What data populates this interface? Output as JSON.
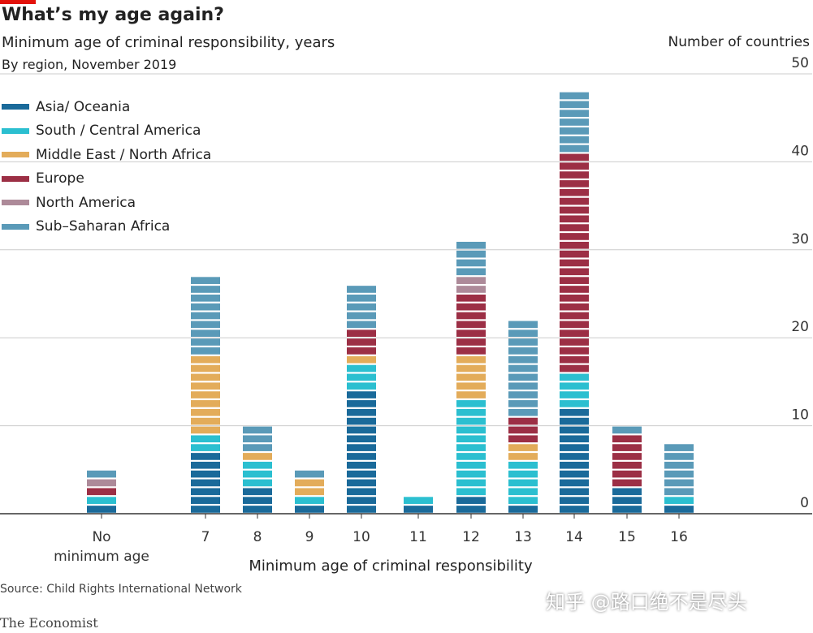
{
  "title": "What’s my age again?",
  "subtitle": "Minimum age of criminal responsibility, years",
  "subtitle2": "By region, November 2019",
  "source": "Source: Child Rights International Network",
  "brand": "The Economist",
  "watermark": "知乎 @路口绝不是尽头",
  "chart_data": {
    "type": "bar",
    "stacked": true,
    "title": "What’s my age again?",
    "xlabel": "Minimum age of criminal responsibility",
    "ylabel": "Number of countries",
    "ylim": [
      0,
      50
    ],
    "yticks": [
      "0",
      "10",
      "20",
      "30",
      "40",
      "50"
    ],
    "grid": true,
    "legend_position": "top-left",
    "categories": [
      "No minimum age",
      "7",
      "8",
      "9",
      "10",
      "11",
      "12",
      "13",
      "14",
      "15",
      "16"
    ],
    "series": [
      {
        "name": "Asia/ Oceania",
        "color": "#1a6a9a",
        "values": [
          1,
          7,
          3,
          1,
          14,
          1,
          2,
          1,
          12,
          3,
          1
        ]
      },
      {
        "name": "South / Central America",
        "color": "#2bbfd0",
        "values": [
          1,
          2,
          3,
          1,
          3,
          1,
          11,
          5,
          4,
          0,
          1
        ]
      },
      {
        "name": "Middle East / North Africa",
        "color": "#e3ac5a",
        "values": [
          0,
          9,
          1,
          2,
          1,
          0,
          5,
          2,
          0,
          0,
          0
        ]
      },
      {
        "name": "Europe",
        "color": "#9c2f45",
        "values": [
          1,
          0,
          0,
          0,
          3,
          0,
          7,
          3,
          25,
          6,
          0
        ]
      },
      {
        "name": "North America",
        "color": "#ad8a99",
        "values": [
          1,
          0,
          0,
          0,
          0,
          0,
          2,
          0,
          0,
          0,
          0
        ]
      },
      {
        "name": "Sub–Saharan Africa",
        "color": "#5a9ab8",
        "values": [
          1,
          9,
          3,
          1,
          5,
          0,
          4,
          11,
          7,
          1,
          6
        ]
      }
    ]
  }
}
